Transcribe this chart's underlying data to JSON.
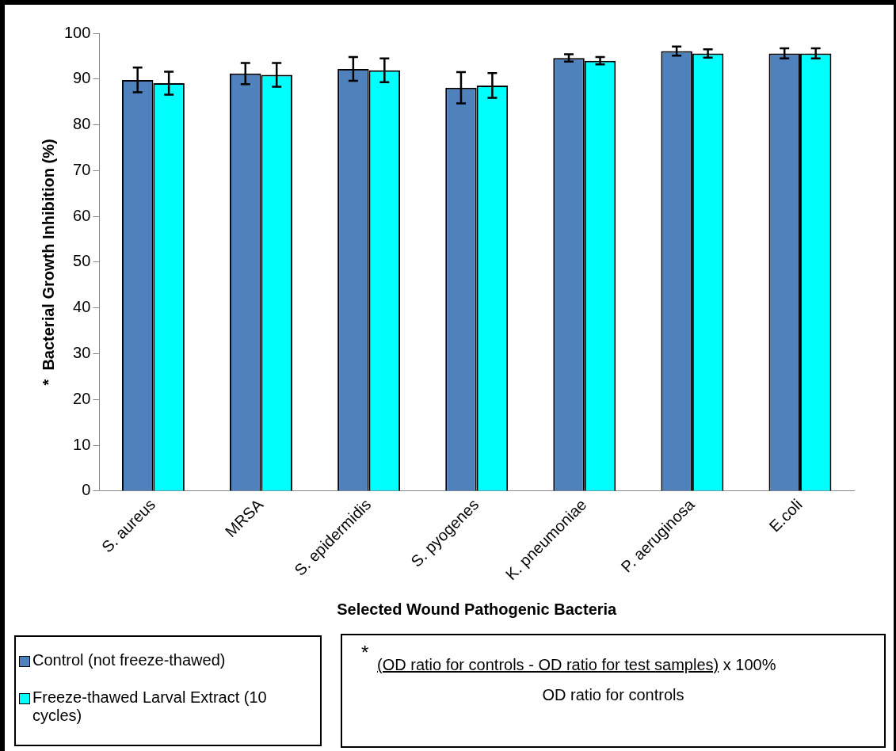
{
  "chart_data": {
    "type": "bar",
    "xlabel": "Selected Wound Pathogenic Bacteria",
    "ylabel": "*  Bacterial Growth Inhibition (%)",
    "categories": [
      "S. aureus",
      "MRSA",
      "S. epidermidis",
      "S. pyogenes",
      "K. pneumoniae",
      "P. aeruginosa",
      "E.coli"
    ],
    "series": [
      {
        "name": "Control (not freeze-thawed)",
        "color": "#4f81bd",
        "values": [
          89.8,
          91.2,
          92.2,
          88.1,
          94.6,
          96.1,
          95.6
        ],
        "errors": [
          2.7,
          2.3,
          2.6,
          3.4,
          0.8,
          1.0,
          1.1
        ]
      },
      {
        "name": "Freeze-thawed Larval Extract (10 cycles)",
        "color": "#00ffff",
        "values": [
          89.1,
          90.9,
          91.9,
          88.6,
          94.0,
          95.6,
          95.6
        ],
        "errors": [
          2.5,
          2.6,
          2.6,
          2.7,
          0.8,
          0.9,
          1.1
        ]
      }
    ],
    "ylim": [
      0,
      100
    ],
    "yticks": [
      0,
      10,
      20,
      30,
      40,
      50,
      60,
      70,
      80,
      90,
      100
    ],
    "grid": false,
    "legend": "bottom left",
    "annotations": [
      "*",
      "(OD ratio for controls - OD ratio for test samples)",
      "x 100%",
      "OD ratio for controls"
    ]
  }
}
